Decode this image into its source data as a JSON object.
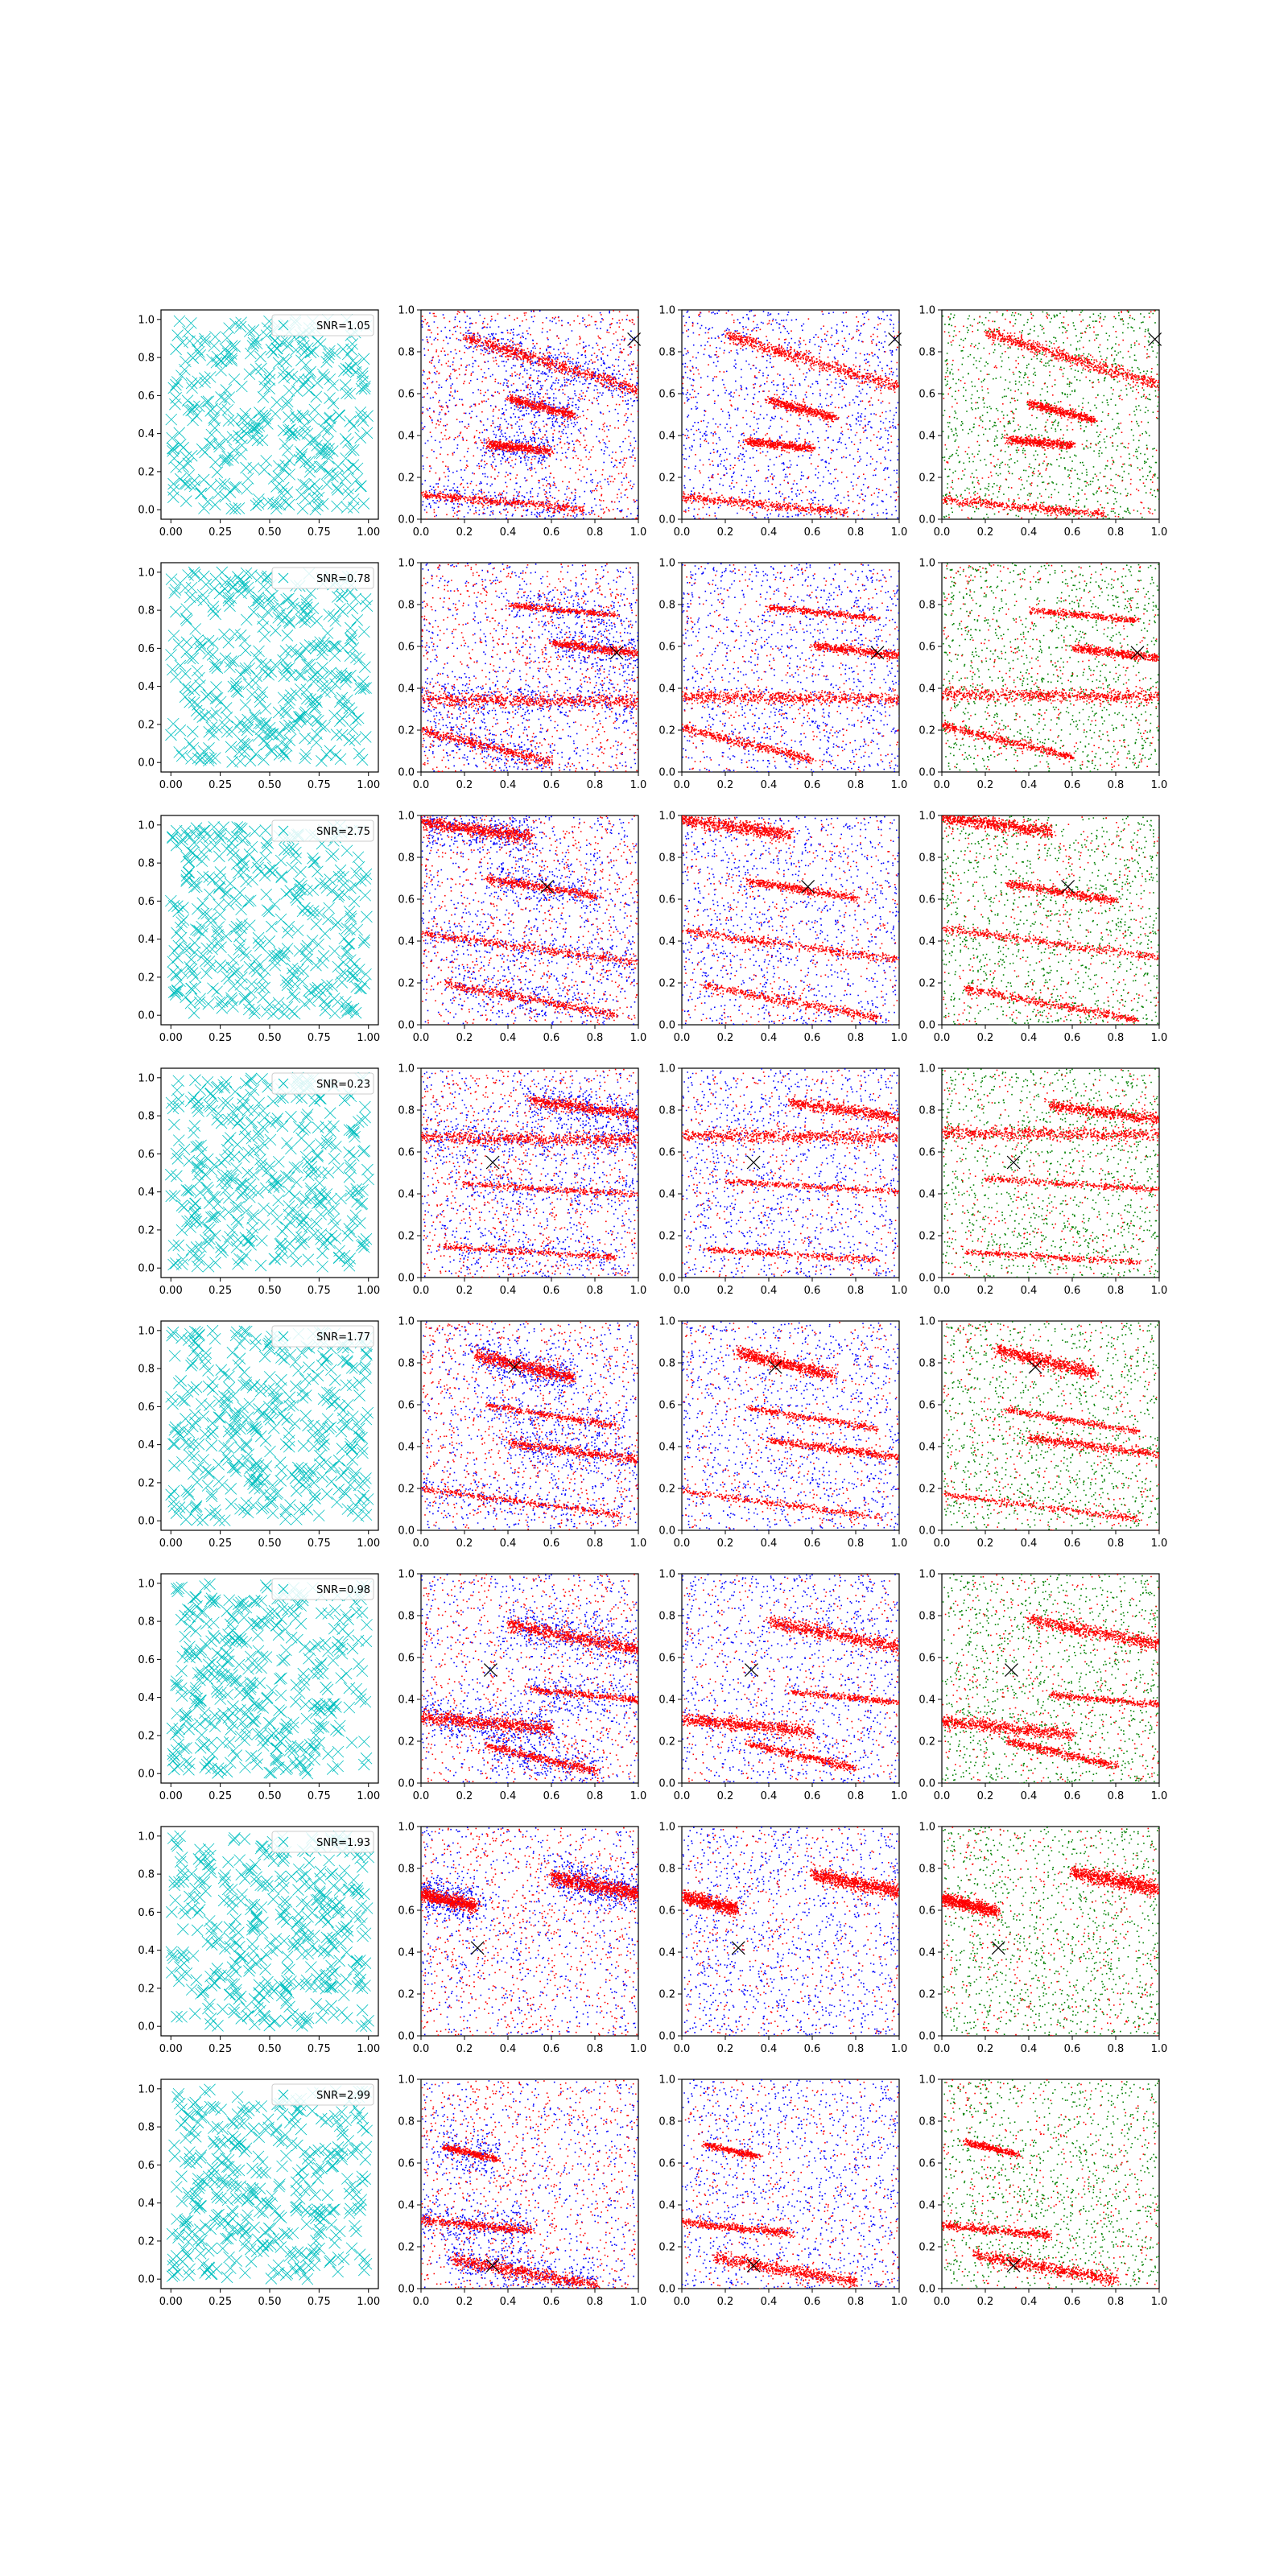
{
  "figure": {
    "rows": 8,
    "cols": 4,
    "snr_labels": [
      "SNR=1.05",
      "SNR=0.78",
      "SNR=2.75",
      "SNR=0.23",
      "SNR=1.77",
      "SNR=0.98",
      "SNR=1.93",
      "SNR=2.99"
    ],
    "colors": {
      "cyan_marker": "#00bfbf",
      "red_points": "#ff0000",
      "blue_points": "#0000ff",
      "green_points": "#008000",
      "true_marker": "#000000"
    }
  },
  "chart_data": {
    "type": "scatter",
    "description_axes": {
      "column1": {
        "xlim": [
          -0.05,
          1.05
        ],
        "ylim": [
          -0.05,
          1.05
        ],
        "xticks": [
          "0.00",
          "0.25",
          "0.50",
          "0.75",
          "1.00"
        ],
        "yticks": [
          "0.0",
          "0.2",
          "0.4",
          "0.6",
          "0.8",
          "1.0"
        ]
      },
      "columns2to4": {
        "xlim": [
          0,
          1
        ],
        "ylim": [
          0,
          1
        ],
        "xticks": [
          "0.0",
          "0.2",
          "0.4",
          "0.6",
          "0.8",
          "1.0"
        ],
        "yticks": [
          "0.0",
          "0.2",
          "0.4",
          "0.6",
          "0.8",
          "1.0"
        ]
      }
    },
    "cyan_point_count": 400,
    "noise_points_per_panel": 1500,
    "panels_rows": [
      {
        "snr": "SNR=1.05",
        "marker": [
          0.98,
          0.86
        ],
        "bands": [
          {
            "x0": 0.2,
            "y0": 0.87,
            "x1": 1.0,
            "y1": 0.62,
            "w": 0.03
          },
          {
            "x0": 0.4,
            "y0": 0.58,
            "x1": 0.7,
            "y1": 0.5,
            "w": 0.02
          },
          {
            "x0": 0.3,
            "y0": 0.36,
            "x1": 0.6,
            "y1": 0.33,
            "w": 0.02
          },
          {
            "x0": 0.0,
            "y0": 0.12,
            "x1": 0.75,
            "y1": 0.05,
            "w": 0.02
          }
        ]
      },
      {
        "snr": "SNR=0.78",
        "marker": [
          0.9,
          0.57
        ],
        "bands": [
          {
            "x0": 0.0,
            "y0": 0.35,
            "x1": 1.0,
            "y1": 0.34,
            "w": 0.03
          },
          {
            "x0": 0.6,
            "y0": 0.62,
            "x1": 1.0,
            "y1": 0.57,
            "w": 0.02
          },
          {
            "x0": 0.0,
            "y0": 0.2,
            "x1": 0.6,
            "y1": 0.05,
            "w": 0.02
          },
          {
            "x0": 0.4,
            "y0": 0.8,
            "x1": 0.9,
            "y1": 0.75,
            "w": 0.015
          }
        ]
      },
      {
        "snr": "SNR=2.75",
        "marker": [
          0.58,
          0.66
        ],
        "bands": [
          {
            "x0": 0.0,
            "y0": 0.97,
            "x1": 0.5,
            "y1": 0.9,
            "w": 0.03
          },
          {
            "x0": 0.3,
            "y0": 0.7,
            "x1": 0.8,
            "y1": 0.62,
            "w": 0.02
          },
          {
            "x0": 0.0,
            "y0": 0.44,
            "x1": 1.0,
            "y1": 0.3,
            "w": 0.02
          },
          {
            "x0": 0.1,
            "y0": 0.2,
            "x1": 0.9,
            "y1": 0.05,
            "w": 0.02
          }
        ]
      },
      {
        "snr": "SNR=0.23",
        "marker": [
          0.33,
          0.55
        ],
        "bands": [
          {
            "x0": 0.0,
            "y0": 0.67,
            "x1": 1.0,
            "y1": 0.66,
            "w": 0.03
          },
          {
            "x0": 0.5,
            "y0": 0.85,
            "x1": 1.0,
            "y1": 0.78,
            "w": 0.025
          },
          {
            "x0": 0.2,
            "y0": 0.45,
            "x1": 1.0,
            "y1": 0.4,
            "w": 0.015
          },
          {
            "x0": 0.1,
            "y0": 0.15,
            "x1": 0.9,
            "y1": 0.1,
            "w": 0.015
          }
        ]
      },
      {
        "snr": "SNR=1.77",
        "marker": [
          0.43,
          0.78
        ],
        "bands": [
          {
            "x0": 0.25,
            "y0": 0.84,
            "x1": 0.7,
            "y1": 0.73,
            "w": 0.03
          },
          {
            "x0": 0.3,
            "y0": 0.6,
            "x1": 0.9,
            "y1": 0.5,
            "w": 0.015
          },
          {
            "x0": 0.4,
            "y0": 0.42,
            "x1": 1.0,
            "y1": 0.34,
            "w": 0.02
          },
          {
            "x0": 0.0,
            "y0": 0.2,
            "x1": 0.9,
            "y1": 0.08,
            "w": 0.015
          }
        ]
      },
      {
        "snr": "SNR=0.98",
        "marker": [
          0.32,
          0.54
        ],
        "bands": [
          {
            "x0": 0.4,
            "y0": 0.76,
            "x1": 1.0,
            "y1": 0.64,
            "w": 0.03
          },
          {
            "x0": 0.0,
            "y0": 0.32,
            "x1": 0.6,
            "y1": 0.26,
            "w": 0.03
          },
          {
            "x0": 0.3,
            "y0": 0.18,
            "x1": 0.8,
            "y1": 0.06,
            "w": 0.02
          },
          {
            "x0": 0.5,
            "y0": 0.45,
            "x1": 1.0,
            "y1": 0.4,
            "w": 0.015
          }
        ]
      },
      {
        "snr": "SNR=1.93",
        "marker": [
          0.26,
          0.42
        ],
        "bands": [
          {
            "x0": 0.6,
            "y0": 0.76,
            "x1": 1.0,
            "y1": 0.68,
            "w": 0.035
          },
          {
            "x0": 0.0,
            "y0": 0.68,
            "x1": 0.25,
            "y1": 0.62,
            "w": 0.03
          }
        ]
      },
      {
        "snr": "SNR=2.99",
        "marker": [
          0.33,
          0.11
        ],
        "bands": [
          {
            "x0": 0.15,
            "y0": 0.14,
            "x1": 0.8,
            "y1": 0.02,
            "w": 0.03
          },
          {
            "x0": 0.0,
            "y0": 0.33,
            "x1": 0.5,
            "y1": 0.28,
            "w": 0.02
          },
          {
            "x0": 0.1,
            "y0": 0.68,
            "x1": 0.35,
            "y1": 0.62,
            "w": 0.015
          }
        ]
      }
    ]
  }
}
